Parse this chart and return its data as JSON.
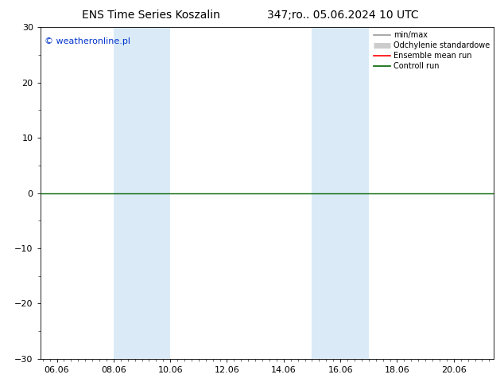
{
  "title_left": "ENS Time Series Koszalin",
  "title_right": "347;ro.. 05.06.2024 10 UTC",
  "ylim": [
    -30,
    30
  ],
  "yticks": [
    -30,
    -20,
    -10,
    0,
    10,
    20,
    30
  ],
  "xtick_labels": [
    "06.06",
    "08.06",
    "10.06",
    "12.06",
    "14.06",
    "16.06",
    "18.06",
    "20.06"
  ],
  "xtick_days": [
    6,
    8,
    10,
    12,
    14,
    16,
    18,
    20
  ],
  "band1_days": [
    8,
    10
  ],
  "band2_days": [
    15,
    17
  ],
  "background_color": "#ffffff",
  "band_color": "#daeaf7",
  "copyright_text": "© weatheronline.pl",
  "legend_entries": [
    {
      "label": "min/max",
      "color": "#999999",
      "lw": 1.2
    },
    {
      "label": "Odchylenie standardowe",
      "color": "#cccccc",
      "lw": 5
    },
    {
      "label": "Ensemble mean run",
      "color": "#ff0000",
      "lw": 1.2
    },
    {
      "label": "Controll run",
      "color": "#006400",
      "lw": 1.2
    }
  ],
  "control_run_color": "#006400",
  "title_fontsize": 10,
  "tick_fontsize": 8,
  "copyright_fontsize": 8,
  "legend_fontsize": 7
}
